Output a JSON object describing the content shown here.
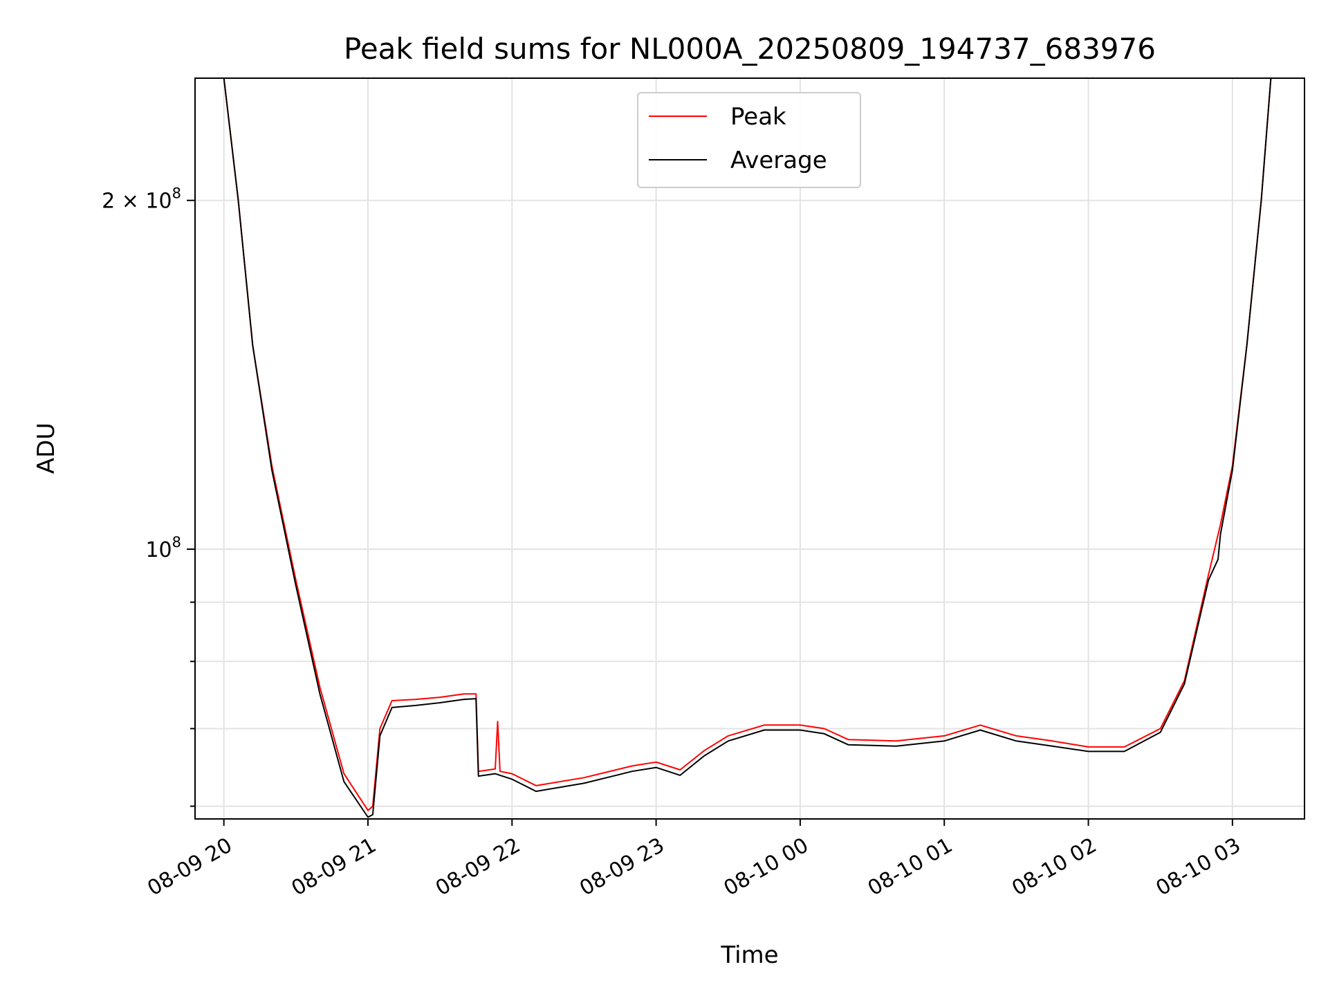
{
  "chart_data": {
    "type": "line",
    "title": "Peak field sums for NL000A_20250809_194737_683976",
    "xlabel": "Time",
    "ylabel": "ADU",
    "yscale": "log",
    "ylim": [
      58500000,
      255000000
    ],
    "xlim": [
      "2025-08-09 19:48",
      "2025-08-10 03:30"
    ],
    "grid": true,
    "legend_position": "upper center",
    "x_ticks": [
      {
        "value": "2025-08-09 20:00",
        "label": "08-09 20"
      },
      {
        "value": "2025-08-09 21:00",
        "label": "08-09 21"
      },
      {
        "value": "2025-08-09 22:00",
        "label": "08-09 22"
      },
      {
        "value": "2025-08-09 23:00",
        "label": "08-09 23"
      },
      {
        "value": "2025-08-10 00:00",
        "label": "08-10 00"
      },
      {
        "value": "2025-08-10 01:00",
        "label": "08-10 01"
      },
      {
        "value": "2025-08-10 02:00",
        "label": "08-10 02"
      },
      {
        "value": "2025-08-10 03:00",
        "label": "08-10 03"
      }
    ],
    "y_ticks_major": [
      {
        "value": 100000000,
        "base": "10",
        "exp": "8"
      },
      {
        "value": 200000000,
        "base": "2 × 10",
        "exp": "8"
      }
    ],
    "y_ticks_minor": [
      60000000,
      70000000,
      80000000,
      90000000
    ],
    "series": [
      {
        "name": "Peak",
        "color": "#ff0000",
        "points": [
          [
            "2025-08-09 20:00",
            255000000
          ],
          [
            "2025-08-09 20:06",
            200000000
          ],
          [
            "2025-08-09 20:12",
            150000000
          ],
          [
            "2025-08-09 20:20",
            118000000
          ],
          [
            "2025-08-09 20:30",
            94000000
          ],
          [
            "2025-08-09 20:40",
            76000000
          ],
          [
            "2025-08-09 20:50",
            64000000
          ],
          [
            "2025-08-09 21:00",
            59500000
          ],
          [
            "2025-08-09 21:02",
            60000000
          ],
          [
            "2025-08-09 21:05",
            70000000
          ],
          [
            "2025-08-09 21:10",
            74000000
          ],
          [
            "2025-08-09 21:20",
            74200000
          ],
          [
            "2025-08-09 21:30",
            74500000
          ],
          [
            "2025-08-09 21:40",
            75000000
          ],
          [
            "2025-08-09 21:45",
            75000000
          ],
          [
            "2025-08-09 21:46",
            64300000
          ],
          [
            "2025-08-09 21:53",
            64600000
          ],
          [
            "2025-08-09 21:54",
            71000000
          ],
          [
            "2025-08-09 21:55",
            64300000
          ],
          [
            "2025-08-09 22:00",
            64000000
          ],
          [
            "2025-08-09 22:10",
            62500000
          ],
          [
            "2025-08-09 22:30",
            63500000
          ],
          [
            "2025-08-09 22:50",
            65000000
          ],
          [
            "2025-08-09 23:00",
            65500000
          ],
          [
            "2025-08-09 23:10",
            64500000
          ],
          [
            "2025-08-09 23:20",
            67000000
          ],
          [
            "2025-08-09 23:30",
            69000000
          ],
          [
            "2025-08-09 23:45",
            70500000
          ],
          [
            "2025-08-10 00:00",
            70500000
          ],
          [
            "2025-08-10 00:10",
            70000000
          ],
          [
            "2025-08-10 00:20",
            68500000
          ],
          [
            "2025-08-10 00:40",
            68300000
          ],
          [
            "2025-08-10 01:00",
            69000000
          ],
          [
            "2025-08-10 01:15",
            70500000
          ],
          [
            "2025-08-10 01:30",
            69000000
          ],
          [
            "2025-08-10 01:45",
            68300000
          ],
          [
            "2025-08-10 02:00",
            67500000
          ],
          [
            "2025-08-10 02:15",
            67500000
          ],
          [
            "2025-08-10 02:30",
            70000000
          ],
          [
            "2025-08-10 02:40",
            77000000
          ],
          [
            "2025-08-10 02:50",
            95000000
          ],
          [
            "2025-08-10 02:55",
            105000000
          ],
          [
            "2025-08-10 03:00",
            118000000
          ],
          [
            "2025-08-10 03:06",
            150000000
          ],
          [
            "2025-08-10 03:12",
            200000000
          ],
          [
            "2025-08-10 03:16",
            255000000
          ]
        ]
      },
      {
        "name": "Average",
        "color": "#000000",
        "points": [
          [
            "2025-08-09 20:00",
            255000000
          ],
          [
            "2025-08-09 20:06",
            200000000
          ],
          [
            "2025-08-09 20:12",
            150000000
          ],
          [
            "2025-08-09 20:20",
            117000000
          ],
          [
            "2025-08-09 20:30",
            93000000
          ],
          [
            "2025-08-09 20:40",
            75000000
          ],
          [
            "2025-08-09 20:50",
            63000000
          ],
          [
            "2025-08-09 21:00",
            58700000
          ],
          [
            "2025-08-09 21:02",
            59000000
          ],
          [
            "2025-08-09 21:05",
            69000000
          ],
          [
            "2025-08-09 21:10",
            73000000
          ],
          [
            "2025-08-09 21:20",
            73300000
          ],
          [
            "2025-08-09 21:30",
            73700000
          ],
          [
            "2025-08-09 21:40",
            74200000
          ],
          [
            "2025-08-09 21:45",
            74300000
          ],
          [
            "2025-08-09 21:46",
            63700000
          ],
          [
            "2025-08-09 21:53",
            64000000
          ],
          [
            "2025-08-09 21:55",
            63800000
          ],
          [
            "2025-08-09 22:00",
            63300000
          ],
          [
            "2025-08-09 22:10",
            61800000
          ],
          [
            "2025-08-09 22:30",
            62800000
          ],
          [
            "2025-08-09 22:50",
            64300000
          ],
          [
            "2025-08-09 23:00",
            64800000
          ],
          [
            "2025-08-09 23:10",
            63800000
          ],
          [
            "2025-08-09 23:20",
            66300000
          ],
          [
            "2025-08-09 23:30",
            68300000
          ],
          [
            "2025-08-09 23:45",
            69800000
          ],
          [
            "2025-08-10 00:00",
            69800000
          ],
          [
            "2025-08-10 00:10",
            69300000
          ],
          [
            "2025-08-10 00:20",
            67800000
          ],
          [
            "2025-08-10 00:40",
            67600000
          ],
          [
            "2025-08-10 01:00",
            68300000
          ],
          [
            "2025-08-10 01:15",
            69800000
          ],
          [
            "2025-08-10 01:30",
            68300000
          ],
          [
            "2025-08-10 01:45",
            67600000
          ],
          [
            "2025-08-10 02:00",
            66900000
          ],
          [
            "2025-08-10 02:15",
            66900000
          ],
          [
            "2025-08-10 02:30",
            69500000
          ],
          [
            "2025-08-10 02:40",
            76500000
          ],
          [
            "2025-08-10 02:50",
            94000000
          ],
          [
            "2025-08-10 02:54",
            98000000
          ],
          [
            "2025-08-10 02:55",
            103000000
          ],
          [
            "2025-08-10 03:00",
            117000000
          ],
          [
            "2025-08-10 03:06",
            150000000
          ],
          [
            "2025-08-10 03:12",
            200000000
          ],
          [
            "2025-08-10 03:16",
            255000000
          ]
        ]
      }
    ]
  }
}
